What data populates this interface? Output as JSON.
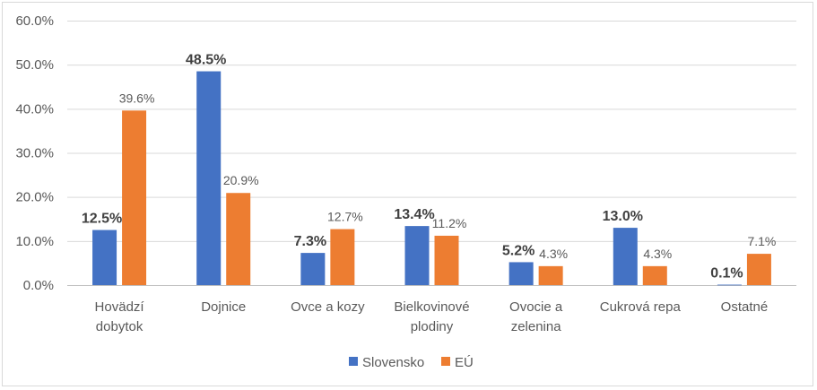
{
  "chart_data": {
    "type": "bar",
    "title": "",
    "xlabel": "",
    "ylabel": "",
    "ylim": [
      0,
      60
    ],
    "y_ticks": [
      "0.0%",
      "10.0%",
      "20.0%",
      "30.0%",
      "40.0%",
      "50.0%",
      "60.0%"
    ],
    "y_tick_values": [
      0,
      10,
      20,
      30,
      40,
      50,
      60
    ],
    "grid": true,
    "legend_position": "bottom",
    "categories": [
      [
        "Hovädzí",
        "dobytok"
      ],
      [
        "Dojnice"
      ],
      [
        "Ovce a kozy"
      ],
      [
        "Bielkovinové",
        "plodiny"
      ],
      [
        "Ovocie a",
        "zelenina"
      ],
      [
        "Cukrová repa"
      ],
      [
        "Ostatné"
      ]
    ],
    "series": [
      {
        "name": "Slovensko",
        "color": "#4472c4",
        "values": [
          12.5,
          48.5,
          7.3,
          13.4,
          5.2,
          13.0,
          0.1
        ],
        "labels": [
          "12.5%",
          "48.5%",
          "7.3%",
          "13.4%",
          "5.2%",
          "13.0%",
          "0.1%"
        ],
        "label_style": "bold"
      },
      {
        "name": "EÚ",
        "color": "#ed7d31",
        "values": [
          39.6,
          20.9,
          12.7,
          11.2,
          4.3,
          4.3,
          7.1
        ],
        "labels": [
          "39.6%",
          "20.9%",
          "12.7%",
          "11.2%",
          "4.3%",
          "4.3%",
          "7.1%"
        ],
        "label_style": "normal"
      }
    ]
  },
  "colors": {
    "gridline": "#d9d9d9",
    "axis": "#bfbfbf"
  }
}
